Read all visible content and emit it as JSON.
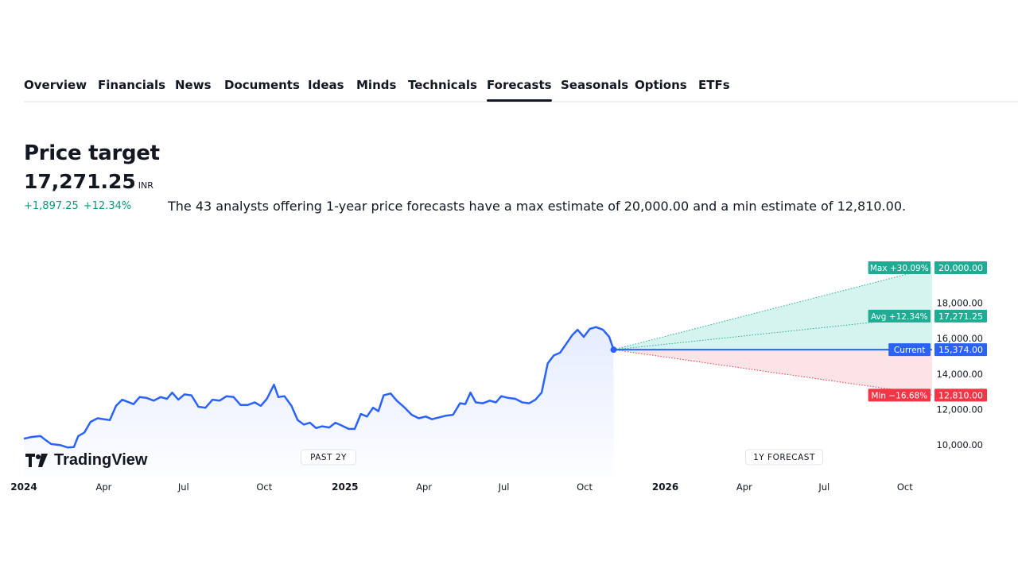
{
  "tabs": [
    {
      "label": "Overview",
      "active": false
    },
    {
      "label": "Financials",
      "active": false
    },
    {
      "label": "News",
      "active": false
    },
    {
      "label": "Documents",
      "active": false
    },
    {
      "label": "Ideas",
      "active": false
    },
    {
      "label": "Minds",
      "active": false
    },
    {
      "label": "Technicals",
      "active": false
    },
    {
      "label": "Forecasts",
      "active": true
    },
    {
      "label": "Seasonals",
      "active": false
    },
    {
      "label": "Options",
      "active": false
    },
    {
      "label": "ETFs",
      "active": false
    }
  ],
  "header": {
    "title": "Price target",
    "price": "17,271.25",
    "currency": "INR",
    "change_abs": "+1,897.25",
    "change_pct": "+12.34%",
    "summary": "The 43 analysts offering 1-year price forecasts have a max estimate of 20,000.00 and a min estimate of 12,810.00."
  },
  "logo": {
    "text": "TradingView"
  },
  "chart_data": {
    "type": "line",
    "x_ticks": [
      "2024",
      "Apr",
      "Jul",
      "Oct",
      "2025",
      "Apr",
      "Jul",
      "Oct",
      "2026",
      "Apr",
      "Jul",
      "Oct"
    ],
    "y_ticks": [
      "18,000.00",
      "16,000.00",
      "14,000.00",
      "12,000.00",
      "10,000.00"
    ],
    "y_tick_values": [
      18000,
      16000,
      14000,
      12000,
      10000
    ],
    "ylim": [
      9200,
      20800
    ],
    "x_start": "2024-01-01",
    "x_end": "2026-11-01",
    "price_series": [
      [
        "2024-01-01",
        10350
      ],
      [
        "2024-01-10",
        10450
      ],
      [
        "2024-01-20",
        10500
      ],
      [
        "2024-01-25",
        10300
      ],
      [
        "2024-02-01",
        10050
      ],
      [
        "2024-02-12",
        9980
      ],
      [
        "2024-02-20",
        9850
      ],
      [
        "2024-02-27",
        9880
      ],
      [
        "2024-03-03",
        10500
      ],
      [
        "2024-03-10",
        10700
      ],
      [
        "2024-03-17",
        11300
      ],
      [
        "2024-03-25",
        11500
      ],
      [
        "2024-04-08",
        11400
      ],
      [
        "2024-04-15",
        12200
      ],
      [
        "2024-04-22",
        12550
      ],
      [
        "2024-05-05",
        12300
      ],
      [
        "2024-05-12",
        12700
      ],
      [
        "2024-05-20",
        12650
      ],
      [
        "2024-05-28",
        12500
      ],
      [
        "2024-06-05",
        12700
      ],
      [
        "2024-06-12",
        12600
      ],
      [
        "2024-06-18",
        12950
      ],
      [
        "2024-06-25",
        12550
      ],
      [
        "2024-07-02",
        12850
      ],
      [
        "2024-07-10",
        12800
      ],
      [
        "2024-07-18",
        12150
      ],
      [
        "2024-07-26",
        12100
      ],
      [
        "2024-08-03",
        12550
      ],
      [
        "2024-08-11",
        12500
      ],
      [
        "2024-08-19",
        12750
      ],
      [
        "2024-08-27",
        12700
      ],
      [
        "2024-09-04",
        12250
      ],
      [
        "2024-09-12",
        12250
      ],
      [
        "2024-09-20",
        12400
      ],
      [
        "2024-09-27",
        12200
      ],
      [
        "2024-10-04",
        12600
      ],
      [
        "2024-10-12",
        13400
      ],
      [
        "2024-10-17",
        12700
      ],
      [
        "2024-10-24",
        12750
      ],
      [
        "2024-11-01",
        12200
      ],
      [
        "2024-11-08",
        11400
      ],
      [
        "2024-11-15",
        11150
      ],
      [
        "2024-11-22",
        11250
      ],
      [
        "2024-11-29",
        10950
      ],
      [
        "2024-12-06",
        11050
      ],
      [
        "2024-12-14",
        10980
      ],
      [
        "2024-12-21",
        11250
      ],
      [
        "2024-12-28",
        11100
      ],
      [
        "2025-01-05",
        10900
      ],
      [
        "2025-01-12",
        10900
      ],
      [
        "2025-01-19",
        11750
      ],
      [
        "2025-01-26",
        11600
      ],
      [
        "2025-02-02",
        12100
      ],
      [
        "2025-02-08",
        11900
      ],
      [
        "2025-02-14",
        12800
      ],
      [
        "2025-02-22",
        12900
      ],
      [
        "2025-03-01",
        12500
      ],
      [
        "2025-03-10",
        12100
      ],
      [
        "2025-03-18",
        11700
      ],
      [
        "2025-03-26",
        11500
      ],
      [
        "2025-04-03",
        11600
      ],
      [
        "2025-04-10",
        11450
      ],
      [
        "2025-04-18",
        11550
      ],
      [
        "2025-04-26",
        11650
      ],
      [
        "2025-05-04",
        11700
      ],
      [
        "2025-05-12",
        12350
      ],
      [
        "2025-05-18",
        12300
      ],
      [
        "2025-05-24",
        12950
      ],
      [
        "2025-05-30",
        12400
      ],
      [
        "2025-06-07",
        12350
      ],
      [
        "2025-06-15",
        12500
      ],
      [
        "2025-06-22",
        12400
      ],
      [
        "2025-06-28",
        12750
      ],
      [
        "2025-07-06",
        12650
      ],
      [
        "2025-07-14",
        12600
      ],
      [
        "2025-07-22",
        12400
      ],
      [
        "2025-07-30",
        12350
      ],
      [
        "2025-08-06",
        12550
      ],
      [
        "2025-08-13",
        12950
      ],
      [
        "2025-08-20",
        14600
      ],
      [
        "2025-08-27",
        15050
      ],
      [
        "2025-09-03",
        15200
      ],
      [
        "2025-09-10",
        15700
      ],
      [
        "2025-09-17",
        16200
      ],
      [
        "2025-09-23",
        16500
      ],
      [
        "2025-09-30",
        16100
      ],
      [
        "2025-10-07",
        16550
      ],
      [
        "2025-10-14",
        16650
      ],
      [
        "2025-10-22",
        16500
      ],
      [
        "2025-10-29",
        16100
      ],
      [
        "2025-11-03",
        15374
      ]
    ],
    "forecast_end": "2026-11-01",
    "current": {
      "label": "Current",
      "value": 15374,
      "value_label": "15,374.00",
      "color": "#2962ff"
    },
    "max": {
      "label": "Max +30.09%",
      "value": 20000,
      "value_label": "20,000.00",
      "color": "#22ab94"
    },
    "avg": {
      "label": "Avg +12.34%",
      "value": 17271.25,
      "value_label": "17,271.25",
      "color": "#22ab94"
    },
    "min": {
      "label": "Min −16.68%",
      "value": 12810,
      "value_label": "12,810.00",
      "color": "#f23645"
    },
    "past_label": "PAST 2Y",
    "forecast_label": "1Y FORECAST",
    "colors": {
      "line": "#2962ff",
      "up_fill": "#d6f4ee",
      "down_fill": "#fce3e8",
      "axis_text": "#131722"
    }
  }
}
